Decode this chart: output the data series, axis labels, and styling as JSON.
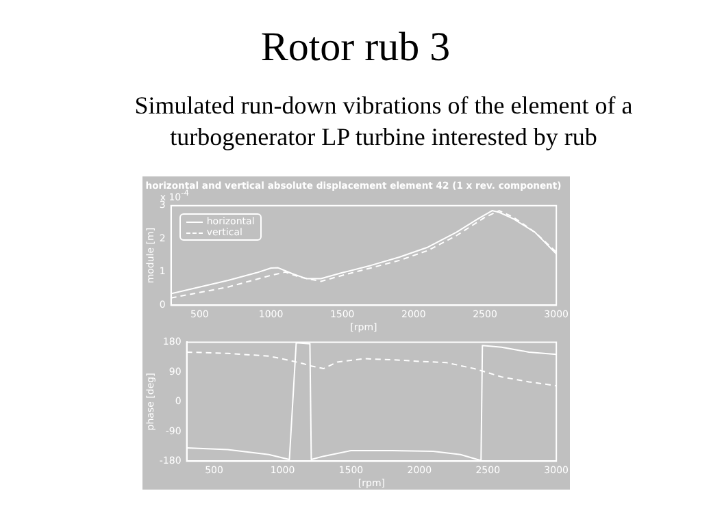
{
  "chart_data": [
    {
      "type": "other",
      "title": "Rotor rub 3",
      "subtitle": "Simulated run-down vibrations of the element of a turbogenerator LP turbine interested by rub"
    },
    {
      "type": "line",
      "title": "horizontal and vertical absolute displacement element 42 (1 x rev. component)",
      "xlabel": "[rpm]",
      "ylabel": "module [m]",
      "annotations": [
        "x 10$^{-4}$"
      ],
      "xlim": [
        300,
        3000
      ],
      "xticks": [
        500,
        1000,
        1500,
        2000,
        2500,
        3000
      ],
      "ylim": [
        0,
        3
      ],
      "yticks": [
        0,
        1,
        2,
        3
      ],
      "grid": false,
      "legend": "top left",
      "marker": "none",
      "series": [
        {
          "name": "horizontal",
          "color": "#ffffff",
          "line_style": "solid",
          "x": [
            300,
            500,
            700,
            900,
            1000,
            1050,
            1150,
            1250,
            1350,
            1500,
            1700,
            1900,
            2100,
            2300,
            2450,
            2550,
            2600,
            2700,
            2850,
            3000
          ],
          "values": [
            0.35,
            0.55,
            0.75,
            0.98,
            1.12,
            1.13,
            0.95,
            0.8,
            0.8,
            0.98,
            1.2,
            1.45,
            1.75,
            2.2,
            2.6,
            2.85,
            2.8,
            2.6,
            2.2,
            1.55
          ]
        },
        {
          "name": "vertical",
          "color": "#ffffff",
          "line_style": "dashed",
          "x": [
            300,
            700,
            1000,
            1100,
            1200,
            1350,
            1500,
            1900,
            2100,
            2300,
            2500,
            2600,
            2700,
            2850,
            3000
          ],
          "values": [
            0.22,
            0.55,
            0.9,
            1.0,
            0.85,
            0.72,
            0.9,
            1.35,
            1.65,
            2.1,
            2.65,
            2.85,
            2.65,
            2.2,
            1.6
          ]
        }
      ]
    },
    {
      "type": "line",
      "xlabel": "[rpm]",
      "ylabel": "phase [deg]",
      "xlim": [
        300,
        3000
      ],
      "xticks": [
        500,
        1000,
        1500,
        2000,
        2500,
        3000
      ],
      "ylim": [
        -180,
        180
      ],
      "yticks": [
        -180,
        -90,
        0,
        90,
        180
      ],
      "grid": false,
      "marker": "none",
      "series": [
        {
          "color": "#ffffff",
          "line_style": "solid",
          "x": [
            300,
            600,
            900,
            1050,
            1100,
            1200,
            1210,
            1300,
            1500,
            1800,
            2100,
            2300,
            2450,
            2460,
            2600,
            2800,
            3000
          ],
          "values": [
            -140,
            -145,
            -160,
            -175,
            178,
            175,
            -175,
            -165,
            -148,
            -148,
            -150,
            -160,
            -178,
            170,
            165,
            150,
            143
          ]
        },
        {
          "color": "#ffffff",
          "line_style": "dashed",
          "x": [
            300,
            600,
            900,
            1050,
            1150,
            1210,
            1300,
            1400,
            1600,
            1800,
            2000,
            2200,
            2400,
            2600,
            2800,
            3000
          ],
          "values": [
            150,
            146,
            138,
            125,
            115,
            108,
            100,
            120,
            130,
            127,
            122,
            118,
            100,
            75,
            60,
            48
          ]
        }
      ]
    }
  ]
}
